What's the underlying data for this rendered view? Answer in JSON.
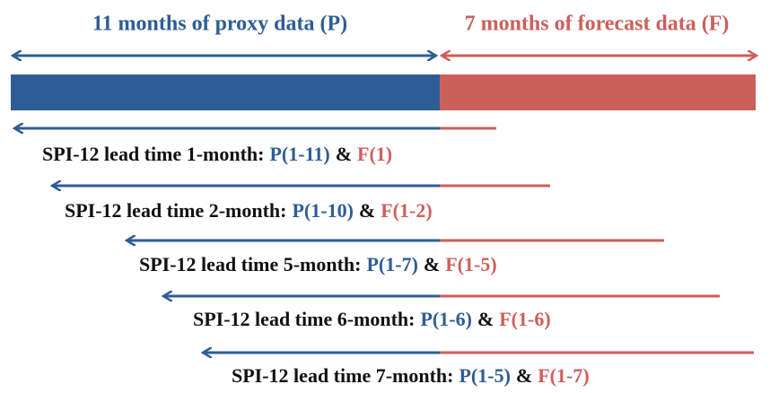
{
  "header": {
    "proxy_label": "11 months of proxy data (P)",
    "forecast_label": "7 months of forecast data (F)"
  },
  "rows": [
    {
      "label": "SPI-12 lead time 1-month:",
      "proxy": "P(1-11)",
      "joiner": "&",
      "forecast": "F(1)"
    },
    {
      "label": "SPI-12 lead time 2-month:",
      "proxy": "P(1-10)",
      "joiner": "&",
      "forecast": "F(1-2)"
    },
    {
      "label": "SPI-12 lead time 5-month:",
      "proxy": "P(1-7)",
      "joiner": "&",
      "forecast": "F(1-5)"
    },
    {
      "label": "SPI-12 lead time 6-month:",
      "proxy": "P(1-6)",
      "joiner": "&",
      "forecast": "F(1-6)"
    },
    {
      "label": "SPI-12 lead time 7-month:",
      "proxy": "P(1-5)",
      "joiner": "&",
      "forecast": "F(1-7)"
    }
  ]
}
